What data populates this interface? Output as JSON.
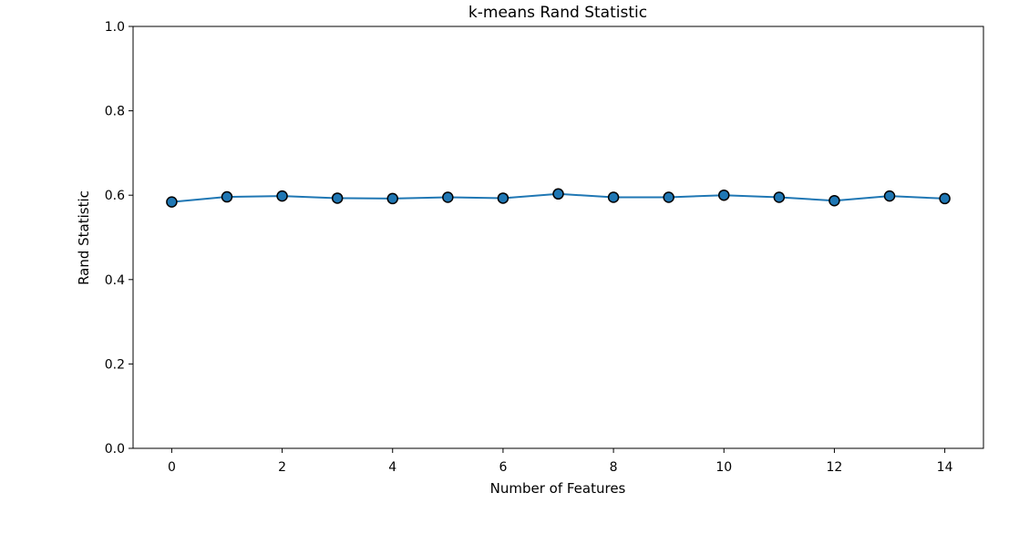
{
  "chart_data": {
    "type": "line",
    "title": "k-means Rand Statistic",
    "xlabel": "Number of Features",
    "ylabel": "Rand Statistic",
    "xlim": [
      -0.7,
      14.7
    ],
    "ylim": [
      0.0,
      1.0
    ],
    "grid": false,
    "x_ticks": [
      0,
      2,
      4,
      6,
      8,
      10,
      12,
      14
    ],
    "x_tick_labels": [
      "0",
      "2",
      "4",
      "6",
      "8",
      "10",
      "12",
      "14"
    ],
    "y_ticks": [
      0.0,
      0.2,
      0.4,
      0.6,
      0.8,
      1.0
    ],
    "y_tick_labels": [
      "0.0",
      "0.2",
      "0.4",
      "0.6",
      "0.8",
      "1.0"
    ],
    "x": [
      0,
      1,
      2,
      3,
      4,
      5,
      6,
      7,
      8,
      9,
      10,
      11,
      12,
      13,
      14
    ],
    "series": [
      {
        "values": [
          0.584,
          0.596,
          0.598,
          0.593,
          0.592,
          0.595,
          0.593,
          0.603,
          0.595,
          0.595,
          0.6,
          0.595,
          0.587,
          0.598,
          0.592
        ],
        "color": "#1f77b4",
        "marker": "circle",
        "marker_edge_color": "#000000"
      }
    ]
  }
}
